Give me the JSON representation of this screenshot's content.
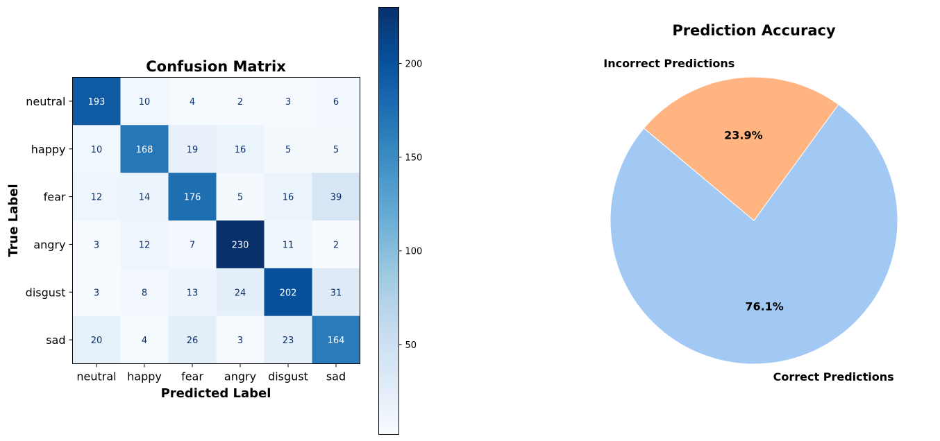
{
  "chart_data": [
    {
      "type": "heatmap",
      "title": "Confusion Matrix",
      "xlabel": "Predicted Label",
      "ylabel": "True Label",
      "x_categories": [
        "neutral",
        "happy",
        "fear",
        "angry",
        "disgust",
        "sad"
      ],
      "y_categories": [
        "neutral",
        "happy",
        "fear",
        "angry",
        "disgust",
        "sad"
      ],
      "values": [
        [
          193,
          10,
          4,
          2,
          3,
          6
        ],
        [
          10,
          168,
          19,
          16,
          5,
          5
        ],
        [
          12,
          14,
          176,
          5,
          16,
          39
        ],
        [
          3,
          12,
          7,
          230,
          11,
          2
        ],
        [
          3,
          8,
          13,
          24,
          202,
          31
        ],
        [
          20,
          4,
          26,
          3,
          23,
          164
        ]
      ],
      "colormap": "Blues",
      "colorbar": {
        "range": [
          2,
          230
        ],
        "ticks": [
          50,
          100,
          150,
          200
        ]
      }
    },
    {
      "type": "pie",
      "title": "Prediction Accuracy",
      "slices": [
        {
          "label": "Correct Predictions",
          "value": 76.1,
          "pct_label": "76.1%",
          "color": "#a1c9f4"
        },
        {
          "label": "Incorrect Predictions",
          "value": 23.9,
          "pct_label": "23.9%",
          "color": "#ffb482"
        }
      ]
    }
  ]
}
